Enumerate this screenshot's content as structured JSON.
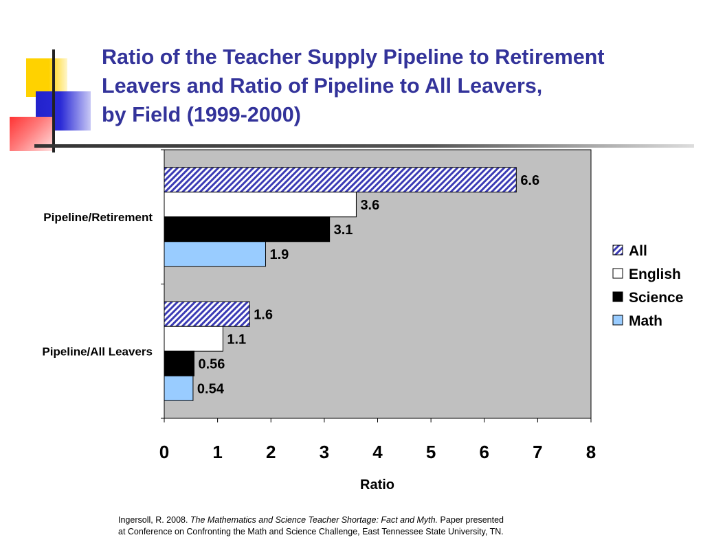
{
  "title_lines": [
    "Ratio of the Teacher Supply Pipeline to Retirement",
    "Leavers and Ratio of Pipeline to All Leavers,",
    "by Field (1999-2000)"
  ],
  "colors": {
    "title": "#33339a",
    "plot_bg": "#c0c0c0",
    "All": "#3b3bb5",
    "English": "#ffffff",
    "Science": "#000000",
    "Math": "#99ccff"
  },
  "chart_data": {
    "type": "bar",
    "orientation": "horizontal",
    "categories": [
      "Pipeline/Retirement",
      "Pipeline/All Leavers"
    ],
    "series": [
      {
        "name": "All",
        "values": [
          6.6,
          1.6
        ],
        "labels": [
          "6.6",
          "1.6"
        ],
        "pattern": "diagonal-hatch"
      },
      {
        "name": "English",
        "values": [
          3.6,
          1.1
        ],
        "labels": [
          "3.6",
          "1.1"
        ]
      },
      {
        "name": "Science",
        "values": [
          3.1,
          0.56
        ],
        "labels": [
          "3.1",
          "0.56"
        ]
      },
      {
        "name": "Math",
        "values": [
          1.9,
          0.54
        ],
        "labels": [
          "1.9",
          "0.54"
        ]
      }
    ],
    "xlabel": "Ratio",
    "xlim": [
      0,
      8
    ],
    "xticks": [
      "0",
      "1",
      "2",
      "3",
      "4",
      "5",
      "6",
      "7",
      "8"
    ],
    "grid": false,
    "legend_position": "right"
  },
  "footnote": {
    "author": "Ingersoll, R. 2008. ",
    "work": "The Mathematics and Science Teacher Shortage: Fact and Myth.",
    "rest1": " Paper presented",
    "rest2": "at Conference on Confronting the Math and Science Challenge, East Tennessee State University, TN."
  }
}
